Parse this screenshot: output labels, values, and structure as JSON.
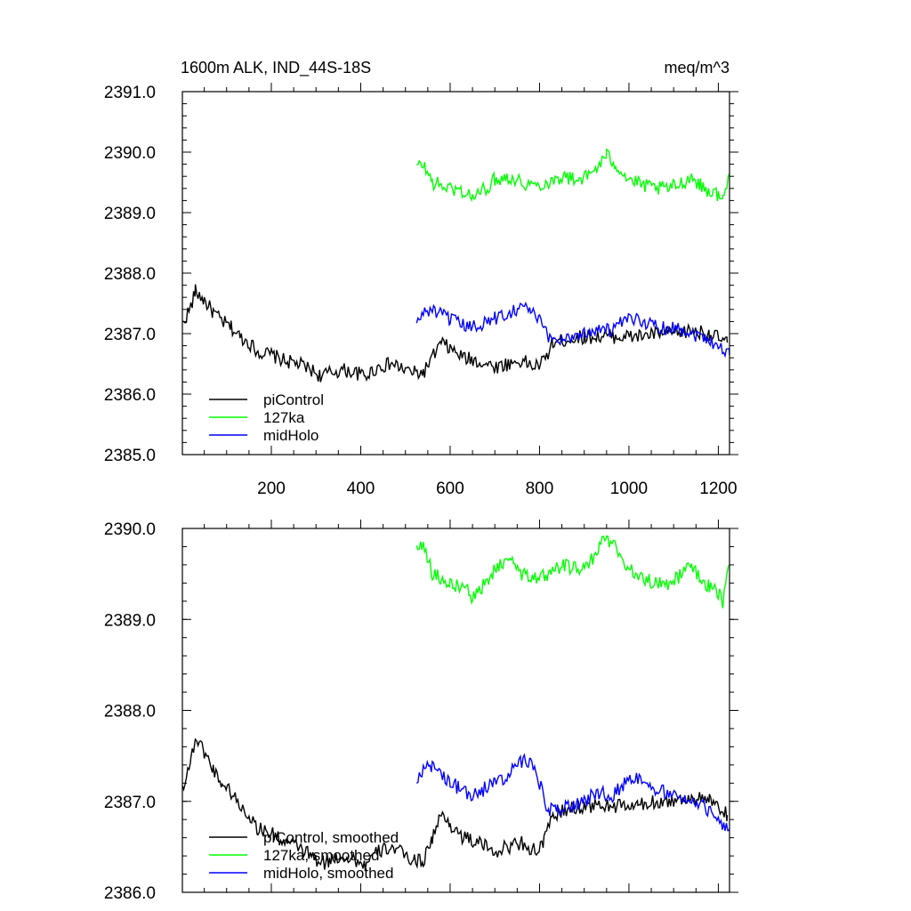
{
  "chart_data": [
    {
      "type": "line",
      "title": "1600m ALK, IND_44S-18S",
      "units": "meq/m^3",
      "xlim": [
        1,
        1225
      ],
      "ylim": [
        2385.0,
        2391.0
      ],
      "xticks": [
        200,
        400,
        600,
        800,
        1000,
        1200
      ],
      "yticks": [
        2385.0,
        2386.0,
        2387.0,
        2388.0,
        2389.0,
        2390.0,
        2391.0
      ],
      "ytick_labels": [
        "2385.0",
        "2386.0",
        "2387.0",
        "2388.0",
        "2389.0",
        "2390.0",
        "2391.0"
      ],
      "grid": false,
      "legend_position": "bottom-left",
      "series": [
        {
          "name": "piControl",
          "color": "#000000",
          "x": [
            1,
            20,
            30,
            50,
            70,
            90,
            110,
            130,
            150,
            170,
            200,
            230,
            260,
            290,
            310,
            330,
            360,
            390,
            410,
            440,
            470,
            500,
            520,
            540,
            560,
            580,
            600,
            630,
            660,
            700,
            730,
            760,
            790,
            810,
            830,
            860,
            900,
            940,
            980,
            1020,
            1060,
            1100,
            1140,
            1180,
            1220
          ],
          "y": [
            2387.15,
            2387.45,
            2387.7,
            2387.55,
            2387.35,
            2387.2,
            2387.1,
            2386.95,
            2386.85,
            2386.7,
            2386.65,
            2386.55,
            2386.5,
            2386.4,
            2386.3,
            2386.35,
            2386.4,
            2386.35,
            2386.3,
            2386.45,
            2386.5,
            2386.4,
            2386.35,
            2386.35,
            2386.6,
            2386.85,
            2386.75,
            2386.6,
            2386.55,
            2386.45,
            2386.5,
            2386.55,
            2386.45,
            2386.55,
            2386.85,
            2386.9,
            2386.95,
            2386.95,
            2386.95,
            2386.95,
            2387.0,
            2387.0,
            2387.05,
            2387.0,
            2386.85
          ]
        },
        {
          "name": "127ka",
          "color": "#00ff00",
          "x": [
            525,
            540,
            560,
            580,
            600,
            630,
            650,
            680,
            700,
            730,
            760,
            790,
            820,
            850,
            880,
            910,
            940,
            950,
            970,
            1000,
            1030,
            1060,
            1090,
            1120,
            1140,
            1160,
            1180,
            1200,
            1210,
            1225
          ],
          "y": [
            2389.75,
            2389.8,
            2389.5,
            2389.45,
            2389.4,
            2389.35,
            2389.25,
            2389.4,
            2389.55,
            2389.6,
            2389.5,
            2389.45,
            2389.5,
            2389.6,
            2389.55,
            2389.6,
            2389.85,
            2389.95,
            2389.8,
            2389.55,
            2389.45,
            2389.4,
            2389.4,
            2389.5,
            2389.6,
            2389.45,
            2389.35,
            2389.3,
            2389.2,
            2389.65
          ]
        },
        {
          "name": "midHolo",
          "color": "#0000ff",
          "x": [
            525,
            540,
            560,
            580,
            600,
            620,
            650,
            680,
            700,
            730,
            760,
            780,
            800,
            820,
            840,
            870,
            900,
            930,
            960,
            990,
            1020,
            1050,
            1080,
            1110,
            1140,
            1170,
            1200,
            1225
          ],
          "y": [
            2387.15,
            2387.35,
            2387.4,
            2387.3,
            2387.25,
            2387.15,
            2387.1,
            2387.2,
            2387.25,
            2387.35,
            2387.45,
            2387.4,
            2387.2,
            2386.95,
            2386.9,
            2386.95,
            2387.0,
            2387.1,
            2387.05,
            2387.2,
            2387.25,
            2387.15,
            2387.1,
            2387.1,
            2387.0,
            2386.95,
            2386.8,
            2386.65
          ]
        }
      ],
      "legend": [
        "piControl",
        "127ka",
        "midHolo"
      ]
    },
    {
      "type": "line",
      "xlim": [
        1,
        1225
      ],
      "ylim": [
        2386.0,
        2390.0
      ],
      "xticks": [
        200,
        400,
        600,
        800,
        1000,
        1200
      ],
      "yticks": [
        2386.0,
        2387.0,
        2388.0,
        2389.0,
        2390.0
      ],
      "ytick_labels": [
        "2386.0",
        "2387.0",
        "2388.0",
        "2389.0",
        "2390.0"
      ],
      "grid": false,
      "legend_position": "bottom-left",
      "series": [
        {
          "name": "piControl, smoothed",
          "color": "#000000",
          "x": [
            1,
            20,
            30,
            50,
            70,
            90,
            110,
            130,
            150,
            170,
            200,
            230,
            260,
            290,
            310,
            330,
            360,
            390,
            410,
            440,
            470,
            500,
            520,
            540,
            560,
            580,
            600,
            630,
            660,
            700,
            730,
            760,
            790,
            810,
            830,
            860,
            900,
            940,
            980,
            1020,
            1060,
            1100,
            1140,
            1180,
            1220
          ],
          "y": [
            2387.15,
            2387.45,
            2387.7,
            2387.55,
            2387.35,
            2387.2,
            2387.1,
            2386.95,
            2386.85,
            2386.7,
            2386.65,
            2386.55,
            2386.5,
            2386.4,
            2386.3,
            2386.35,
            2386.4,
            2386.35,
            2386.3,
            2386.45,
            2386.5,
            2386.4,
            2386.35,
            2386.35,
            2386.6,
            2386.85,
            2386.75,
            2386.6,
            2386.55,
            2386.45,
            2386.5,
            2386.55,
            2386.45,
            2386.55,
            2386.85,
            2386.9,
            2386.95,
            2386.95,
            2386.95,
            2386.95,
            2387.0,
            2387.0,
            2387.05,
            2387.0,
            2386.85
          ]
        },
        {
          "name": "127ka, smoothed",
          "color": "#00ff00",
          "x": [
            525,
            540,
            560,
            580,
            600,
            630,
            650,
            680,
            700,
            730,
            760,
            790,
            820,
            850,
            880,
            910,
            940,
            950,
            970,
            1000,
            1030,
            1060,
            1090,
            1120,
            1140,
            1160,
            1180,
            1200,
            1210,
            1225
          ],
          "y": [
            2389.8,
            2389.85,
            2389.5,
            2389.45,
            2389.4,
            2389.35,
            2389.25,
            2389.4,
            2389.55,
            2389.65,
            2389.5,
            2389.45,
            2389.5,
            2389.6,
            2389.55,
            2389.6,
            2389.85,
            2389.9,
            2389.8,
            2389.55,
            2389.45,
            2389.4,
            2389.4,
            2389.5,
            2389.6,
            2389.45,
            2389.35,
            2389.3,
            2389.2,
            2389.6
          ]
        },
        {
          "name": "midHolo, smoothed",
          "color": "#0000ff",
          "x": [
            525,
            540,
            560,
            580,
            600,
            620,
            650,
            680,
            700,
            730,
            760,
            780,
            800,
            820,
            840,
            870,
            900,
            930,
            960,
            990,
            1020,
            1050,
            1080,
            1110,
            1140,
            1170,
            1200,
            1225
          ],
          "y": [
            2387.2,
            2387.35,
            2387.4,
            2387.3,
            2387.2,
            2387.15,
            2387.05,
            2387.15,
            2387.2,
            2387.3,
            2387.45,
            2387.4,
            2387.2,
            2386.9,
            2386.9,
            2386.95,
            2387.0,
            2387.1,
            2387.05,
            2387.2,
            2387.25,
            2387.15,
            2387.1,
            2387.1,
            2387.0,
            2386.95,
            2386.8,
            2386.7
          ]
        }
      ],
      "legend": [
        "piControl, smoothed",
        "127ka, smoothed",
        "midHolo, smoothed"
      ]
    }
  ]
}
